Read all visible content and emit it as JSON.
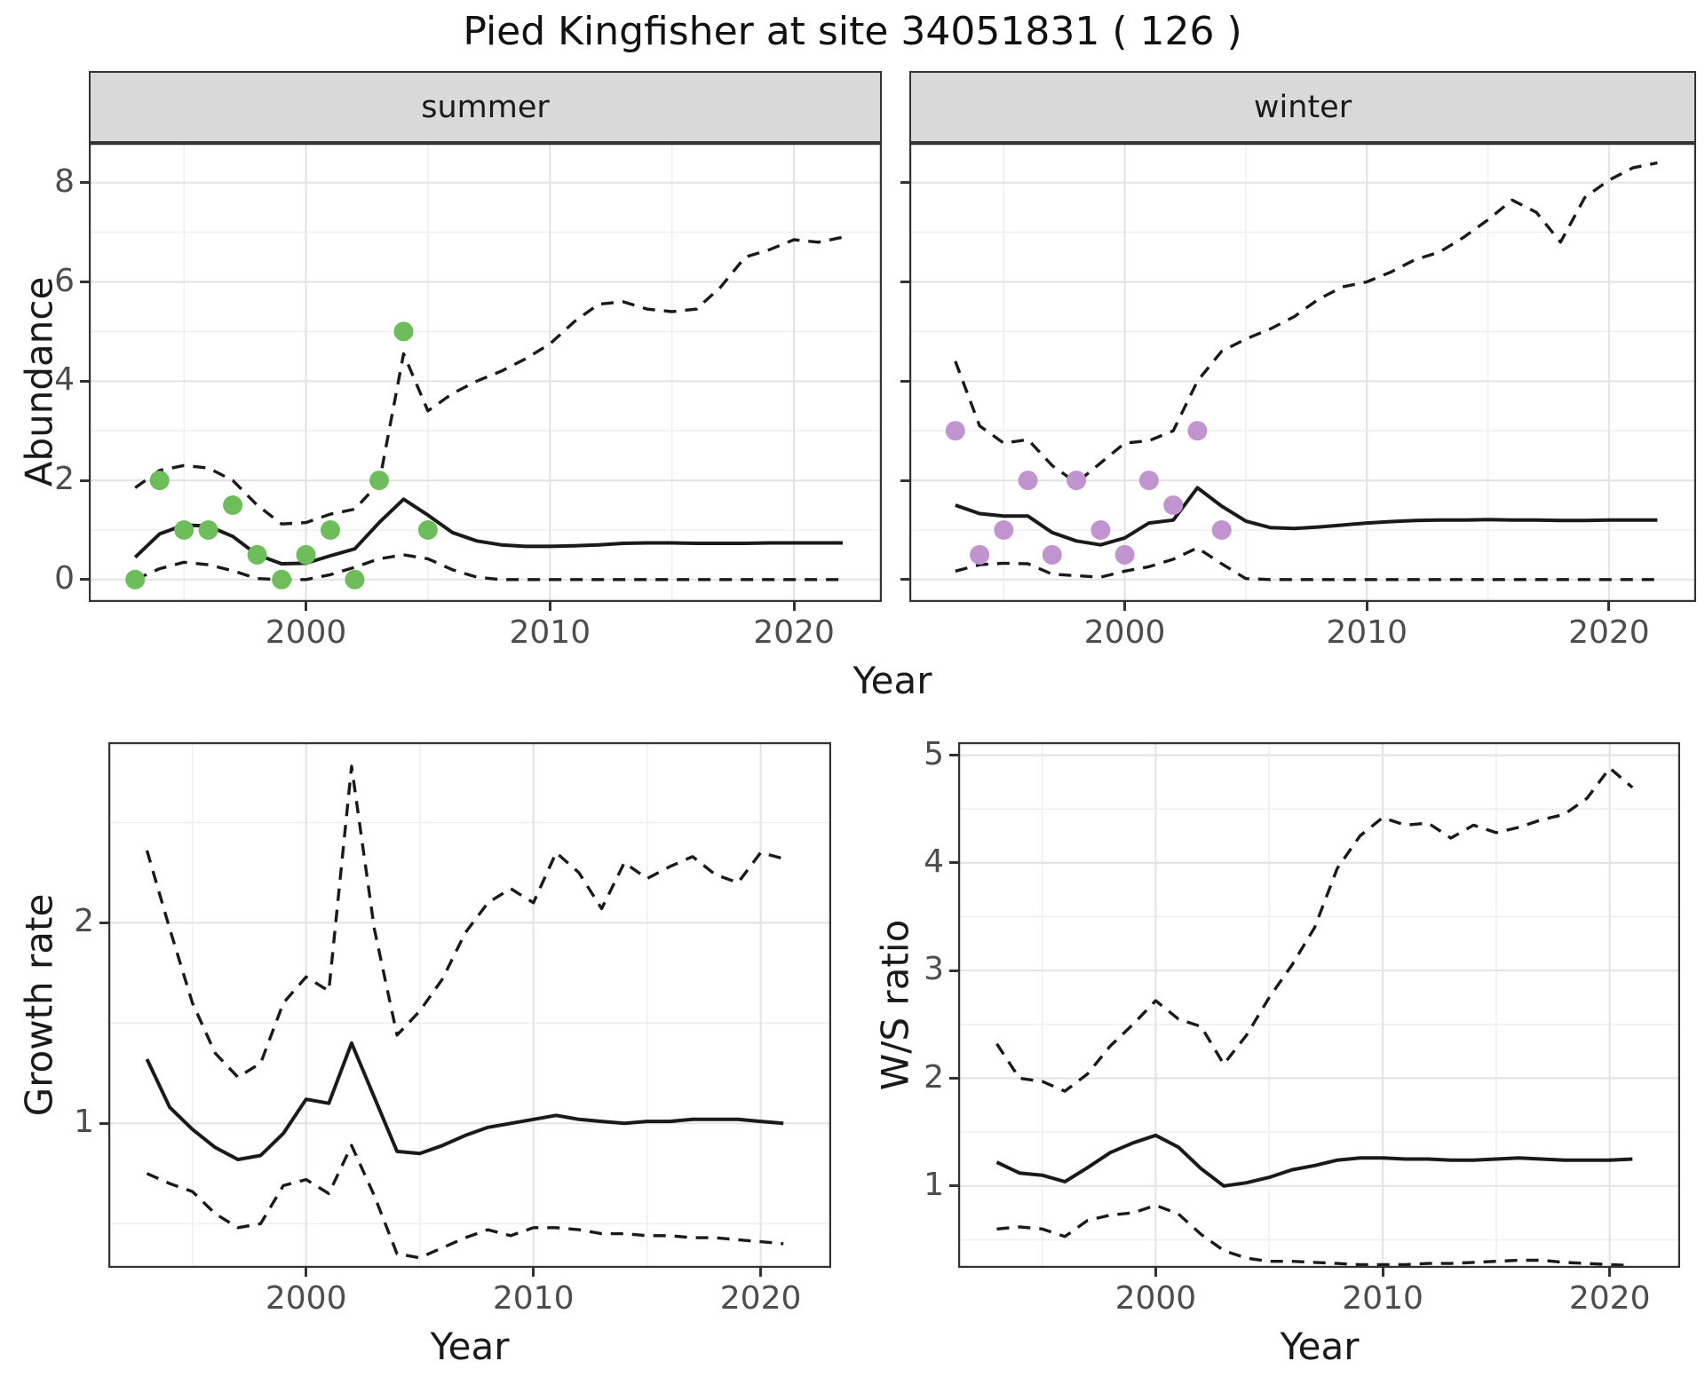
{
  "title": "Pied Kingfisher at site 34051831 ( 126 )",
  "facets": [
    {
      "label": "summer"
    },
    {
      "label": "winter"
    }
  ],
  "axes": {
    "y_title_top": "Abundance",
    "x_title_top": "Year",
    "y_title_bottom_left": "Growth rate",
    "x_title_bottom_left": "Year",
    "y_title_bottom_right": "W/S ratio",
    "x_title_bottom_right": "Year"
  },
  "colors": {
    "summer_points": "#6dbe5b",
    "winter_points": "#c194d0",
    "line": "#1a1a1a",
    "strip_bg": "#d9d9d9",
    "panel_border": "#333333",
    "grid_major": "#e4e4e4",
    "grid_minor": "#efefef",
    "tick_text": "#4d4d4d"
  },
  "chart_data": [
    {
      "id": "summer-abundance",
      "type": "line",
      "title": "summer facet: abundance vs year",
      "xlabel": "Year",
      "ylabel": "Abundance",
      "xlim": [
        1991.1,
        2023.6
      ],
      "ylim": [
        -0.45,
        8.8
      ],
      "x_ticks": [
        2000,
        2010,
        2020
      ],
      "x_minor": [
        1995,
        2005,
        2015
      ],
      "y_ticks": [
        0,
        2,
        4,
        6,
        8
      ],
      "y_minor": [
        1,
        3,
        5,
        7
      ],
      "grid": true,
      "legend": "none",
      "points": {
        "name": "observed-count",
        "color": "#6dbe5b",
        "x": [
          1993,
          1994,
          1995,
          1996,
          1997,
          1998,
          1999,
          2000,
          2001,
          2002,
          2003,
          2004,
          2005
        ],
        "y": [
          0,
          2,
          1,
          1,
          1.5,
          0.5,
          0,
          0.5,
          1,
          0,
          2,
          5,
          1
        ]
      },
      "series": [
        {
          "name": "median",
          "style": "solid",
          "x_start": 1993,
          "values": [
            0.45,
            0.92,
            1.1,
            1.08,
            0.87,
            0.5,
            0.32,
            0.33,
            0.48,
            0.62,
            1.15,
            1.62,
            1.3,
            0.95,
            0.78,
            0.7,
            0.67,
            0.67,
            0.68,
            0.7,
            0.73,
            0.74,
            0.74,
            0.73,
            0.73,
            0.73,
            0.74,
            0.74,
            0.74,
            0.74
          ]
        },
        {
          "name": "upper-ci",
          "style": "dashed",
          "x_start": 1993,
          "values": [
            1.85,
            2.2,
            2.3,
            2.25,
            2.0,
            1.5,
            1.12,
            1.15,
            1.32,
            1.42,
            1.95,
            4.55,
            3.4,
            3.75,
            4.0,
            4.2,
            4.45,
            4.75,
            5.2,
            5.55,
            5.6,
            5.45,
            5.4,
            5.45,
            5.9,
            6.5,
            6.65,
            6.85,
            6.8,
            6.9
          ]
        },
        {
          "name": "lower-ci",
          "style": "dashed",
          "x_start": 1993,
          "values": [
            0.0,
            0.22,
            0.35,
            0.3,
            0.18,
            0.02,
            0.0,
            0.0,
            0.1,
            0.25,
            0.42,
            0.5,
            0.42,
            0.2,
            0.05,
            0.0,
            0.0,
            0.0,
            0.0,
            0.0,
            0.0,
            0.0,
            0.0,
            0.0,
            0.0,
            0.0,
            0.0,
            0.0,
            0.0,
            0.0
          ]
        }
      ]
    },
    {
      "id": "winter-abundance",
      "type": "line",
      "title": "winter facet: abundance vs year",
      "xlabel": "Year",
      "ylabel": "Abundance",
      "xlim": [
        1991.1,
        2023.6
      ],
      "ylim": [
        -0.45,
        8.8
      ],
      "x_ticks": [
        2000,
        2010,
        2020
      ],
      "x_minor": [
        1995,
        2005,
        2015
      ],
      "y_ticks": [
        0,
        2,
        4,
        6,
        8
      ],
      "y_minor": [
        1,
        3,
        5,
        7
      ],
      "grid": true,
      "legend": "none",
      "points": {
        "name": "observed-count",
        "color": "#c194d0",
        "x": [
          1993,
          1994,
          1995,
          1996,
          1997,
          1998,
          1999,
          2000,
          2001,
          2002,
          2003,
          2004
        ],
        "y": [
          3,
          0.5,
          1,
          2,
          0.5,
          2,
          1,
          0.5,
          2,
          1.5,
          3,
          1
        ]
      },
      "series": [
        {
          "name": "median",
          "style": "solid",
          "x_start": 1993,
          "values": [
            1.5,
            1.33,
            1.28,
            1.28,
            0.95,
            0.78,
            0.7,
            0.84,
            1.14,
            1.2,
            1.85,
            1.48,
            1.18,
            1.05,
            1.03,
            1.06,
            1.1,
            1.14,
            1.17,
            1.19,
            1.2,
            1.2,
            1.21,
            1.2,
            1.2,
            1.19,
            1.19,
            1.2,
            1.2,
            1.2
          ]
        },
        {
          "name": "upper-ci",
          "style": "dashed",
          "x_start": 1993,
          "values": [
            4.4,
            3.1,
            2.75,
            2.82,
            2.3,
            1.95,
            2.35,
            2.75,
            2.8,
            3.0,
            4.0,
            4.6,
            4.85,
            5.05,
            5.3,
            5.65,
            5.9,
            6.0,
            6.2,
            6.45,
            6.6,
            6.9,
            7.25,
            7.65,
            7.4,
            6.8,
            7.7,
            8.05,
            8.3,
            8.4
          ]
        },
        {
          "name": "lower-ci",
          "style": "dashed",
          "x_start": 1993,
          "values": [
            0.17,
            0.3,
            0.33,
            0.32,
            0.11,
            0.08,
            0.05,
            0.17,
            0.26,
            0.41,
            0.64,
            0.32,
            0.02,
            0.0,
            0.0,
            0.0,
            0.0,
            0.0,
            0.0,
            0.0,
            0.0,
            0.0,
            0.0,
            0.0,
            0.0,
            0.0,
            0.0,
            0.0,
            0.0,
            0.0
          ]
        }
      ]
    },
    {
      "id": "growth-rate",
      "type": "line",
      "title": "growth rate vs year",
      "xlabel": "Year",
      "ylabel": "Growth rate",
      "xlim": [
        1991.3,
        2023.1
      ],
      "ylim": [
        0.28,
        2.9
      ],
      "x_ticks": [
        2000,
        2010,
        2020
      ],
      "x_minor": [
        1995,
        2005,
        2015
      ],
      "y_ticks": [
        1,
        2
      ],
      "y_minor": [
        0.5,
        1.5,
        2.5
      ],
      "grid": true,
      "legend": "none",
      "series": [
        {
          "name": "median",
          "style": "solid",
          "x_start": 1993,
          "values": [
            1.32,
            1.08,
            0.97,
            0.88,
            0.82,
            0.84,
            0.95,
            1.12,
            1.1,
            1.4,
            1.13,
            0.86,
            0.85,
            0.89,
            0.94,
            0.98,
            1.0,
            1.02,
            1.04,
            1.02,
            1.01,
            1.0,
            1.01,
            1.01,
            1.02,
            1.02,
            1.02,
            1.01,
            1.0
          ]
        },
        {
          "name": "upper-ci",
          "style": "dashed",
          "x_start": 1993,
          "values": [
            2.36,
            1.97,
            1.6,
            1.35,
            1.23,
            1.3,
            1.6,
            1.73,
            1.66,
            2.78,
            1.97,
            1.44,
            1.56,
            1.72,
            1.95,
            2.1,
            2.17,
            2.1,
            2.35,
            2.25,
            2.07,
            2.3,
            2.22,
            2.28,
            2.33,
            2.24,
            2.2,
            2.35,
            2.32
          ]
        },
        {
          "name": "lower-ci",
          "style": "dashed",
          "x_start": 1993,
          "values": [
            0.75,
            0.7,
            0.66,
            0.55,
            0.48,
            0.5,
            0.69,
            0.72,
            0.65,
            0.89,
            0.64,
            0.35,
            0.33,
            0.38,
            0.43,
            0.47,
            0.44,
            0.48,
            0.48,
            0.47,
            0.45,
            0.45,
            0.44,
            0.44,
            0.43,
            0.43,
            0.42,
            0.41,
            0.4
          ]
        }
      ]
    },
    {
      "id": "ws-ratio",
      "type": "line",
      "title": "winter/summer ratio vs year",
      "xlabel": "Year",
      "ylabel": "W/S ratio",
      "xlim": [
        1991.3,
        2023.1
      ],
      "ylim": [
        0.24,
        5.12
      ],
      "x_ticks": [
        2000,
        2010,
        2020
      ],
      "x_minor": [
        1995,
        2005,
        2015
      ],
      "y_ticks": [
        1,
        2,
        3,
        4,
        5
      ],
      "y_minor": [
        0.5,
        1.5,
        2.5,
        3.5,
        4.5
      ],
      "grid": true,
      "legend": "none",
      "series": [
        {
          "name": "median",
          "style": "solid",
          "x_start": 1993,
          "values": [
            1.22,
            1.12,
            1.1,
            1.04,
            1.17,
            1.31,
            1.4,
            1.47,
            1.36,
            1.16,
            1.0,
            1.03,
            1.08,
            1.15,
            1.19,
            1.24,
            1.26,
            1.26,
            1.25,
            1.25,
            1.24,
            1.24,
            1.25,
            1.26,
            1.25,
            1.24,
            1.24,
            1.24,
            1.25
          ]
        },
        {
          "name": "upper-ci",
          "style": "dashed",
          "x_start": 1993,
          "values": [
            2.32,
            2.0,
            1.97,
            1.88,
            2.04,
            2.3,
            2.5,
            2.72,
            2.55,
            2.48,
            2.13,
            2.4,
            2.75,
            3.05,
            3.4,
            3.95,
            4.25,
            4.42,
            4.35,
            4.37,
            4.23,
            4.35,
            4.28,
            4.33,
            4.4,
            4.45,
            4.6,
            4.88,
            4.7
          ]
        },
        {
          "name": "lower-ci",
          "style": "dashed",
          "x_start": 1993,
          "values": [
            0.6,
            0.62,
            0.6,
            0.53,
            0.68,
            0.73,
            0.75,
            0.82,
            0.74,
            0.55,
            0.4,
            0.33,
            0.3,
            0.3,
            0.29,
            0.28,
            0.27,
            0.27,
            0.27,
            0.28,
            0.28,
            0.29,
            0.3,
            0.31,
            0.31,
            0.29,
            0.28,
            0.27,
            0.26
          ]
        }
      ]
    }
  ]
}
